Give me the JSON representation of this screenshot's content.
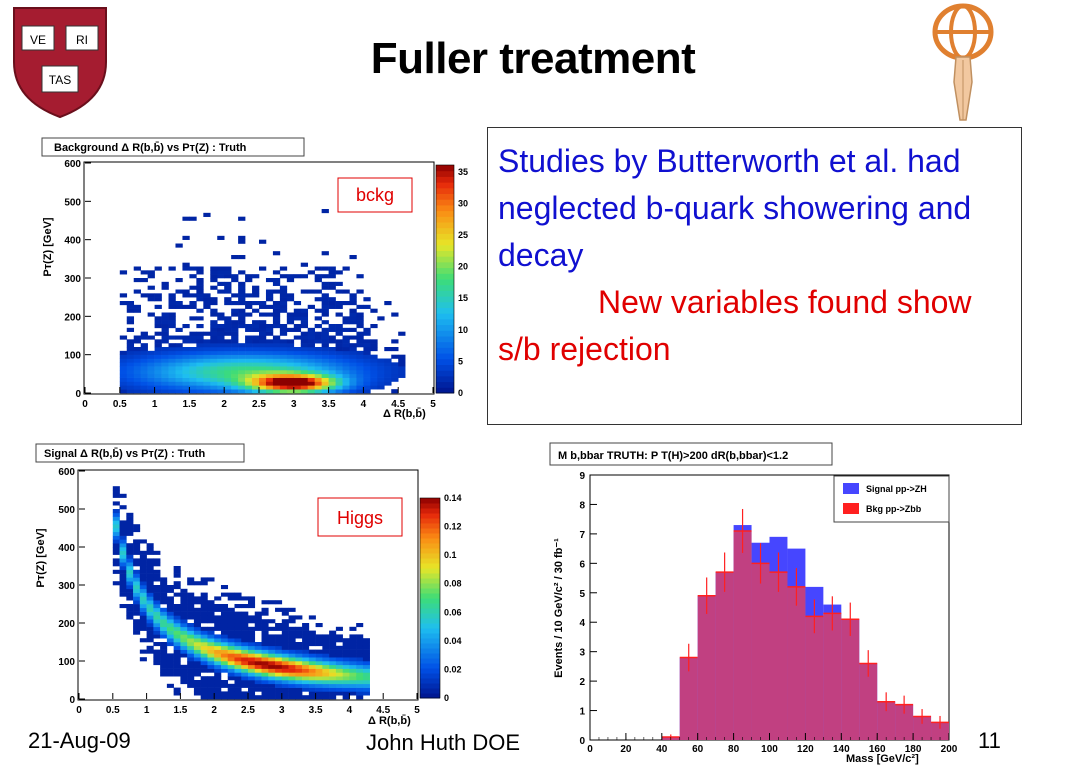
{
  "slide": {
    "title": "Fuller treatment",
    "footer_date": "21-Aug-09",
    "footer_author": "John Huth DOE",
    "page_number": "11",
    "logo_text": [
      "VE",
      "RI",
      "TAS"
    ]
  },
  "textbox": {
    "line1": "Studies by Butterworth et al. had neglected b-quark showering and decay",
    "line2": "New variables found show s/b rejection",
    "color_blue": "#1010d0",
    "color_red": "#e00000"
  },
  "plots": {
    "bckg": {
      "title": "Background Δ R(b,b̄) vs Pт(Z) :  Truth",
      "title_plain": "Background Δ R(b,b) vs P(Z) :  Truth",
      "tag": "bckg",
      "xlabel": "Δ R(b,b̄)",
      "ylabel": "Pт(Z) [GeV]",
      "xticks": [
        "0",
        "0.5",
        "1",
        "1.5",
        "2",
        "2.5",
        "3",
        "3.5",
        "4",
        "4.5",
        "5"
      ],
      "yticks": [
        "0",
        "100",
        "200",
        "300",
        "400",
        "500",
        "600"
      ],
      "zticks": [
        "0",
        "5",
        "10",
        "15",
        "20",
        "25",
        "30",
        "35"
      ]
    },
    "higgs": {
      "title": "Signal Δ R(b,b̄) vs Pт(Z) :  Truth",
      "tag": "Higgs",
      "xlabel": "Δ R(b,b̄)",
      "ylabel": "Pт(Z) [GeV]",
      "xticks": [
        "0",
        "0.5",
        "1",
        "1.5",
        "2",
        "2.5",
        "3",
        "3.5",
        "4",
        "4.5",
        "5"
      ],
      "yticks": [
        "0",
        "100",
        "200",
        "300",
        "400",
        "500",
        "600"
      ],
      "zticks": [
        "0",
        "0.02",
        "0.04",
        "0.06",
        "0.08",
        "0.1",
        "0.12",
        "0.14"
      ]
    }
  },
  "chart_data": {
    "type": "bar",
    "title": "M b,bbar TRUTH: P T(H)>200 dR(b,bbar)<1.2",
    "xlabel": "Mass [GeV/c²]",
    "ylabel": "Events / 10 GeV/c² / 30 fb⁻¹",
    "xlim": [
      0,
      200
    ],
    "ylim": [
      0,
      9
    ],
    "xticks": [
      "0",
      "20",
      "40",
      "60",
      "80",
      "100",
      "120",
      "140",
      "160",
      "180",
      "200"
    ],
    "yticks": [
      "0",
      "1",
      "2",
      "3",
      "4",
      "5",
      "6",
      "7",
      "8",
      "9"
    ],
    "bin_edges": [
      0,
      10,
      20,
      30,
      40,
      50,
      60,
      70,
      80,
      90,
      100,
      110,
      120,
      130,
      140,
      150,
      160,
      170,
      180,
      190,
      200
    ],
    "legend_position": "top-right",
    "series": [
      {
        "name": "Signal pp->ZH",
        "color": "#4646ff",
        "values": [
          0,
          0,
          0,
          0,
          0.1,
          2.8,
          4.9,
          5.7,
          7.3,
          6.7,
          6.9,
          6.5,
          5.2,
          4.6,
          4.1,
          2.6,
          1.3,
          1.2,
          0.8,
          0.6
        ]
      },
      {
        "name": "Bkg pp->Zbb",
        "color": "#ff2020",
        "values": [
          0,
          0,
          0,
          0,
          0.1,
          2.8,
          4.9,
          5.7,
          7.1,
          6.0,
          5.7,
          5.2,
          4.2,
          4.3,
          4.1,
          2.6,
          1.3,
          1.2,
          0.8,
          0.6
        ]
      }
    ]
  }
}
